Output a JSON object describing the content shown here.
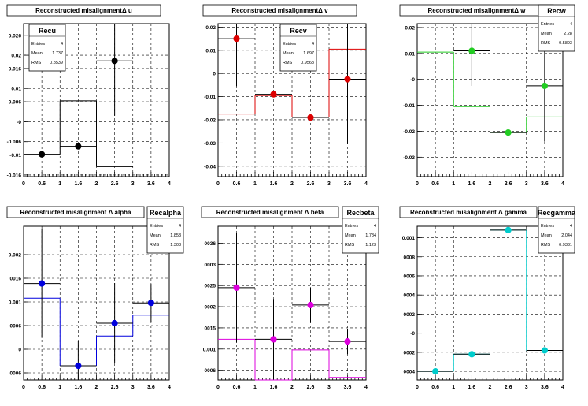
{
  "charts": [
    {
      "title": "Reconstructed misalignmentΔ u",
      "color": "#000000",
      "stats": {
        "name": "Recu",
        "entries": "4",
        "mean": "1.737",
        "rms": "0.8539"
      },
      "entries_label": "Entries",
      "mean_label": "Mean",
      "rms_label": "RMS",
      "xlim": [
        0,
        4
      ],
      "ylim": [
        -0.0165,
        0.0295
      ],
      "xticks": [
        "0",
        "0.6",
        "1",
        "1.6",
        "2",
        "2.6",
        "3",
        "3.6",
        "4"
      ],
      "yticks": [
        "0.026",
        "0.02",
        "0.016",
        "0.01",
        "0.006",
        "-0",
        "-0.006",
        "-0.01",
        "-0.016"
      ],
      "ytick_values": [
        0.026,
        0.02,
        0.016,
        0.01,
        0.006,
        0,
        -0.006,
        -0.01,
        -0.016
      ],
      "ytick_side_clip": true
    },
    {
      "title": "Reconstructed misalignmentΔ v",
      "color": "#dd0000",
      "stats": {
        "name": "Recv",
        "entries": "4",
        "mean": "1.697",
        "rms": "0.9568"
      },
      "entries_label": "Entries",
      "mean_label": "Mean",
      "rms_label": "RMS",
      "xlim": [
        0,
        4
      ],
      "ylim": [
        -0.0445,
        0.0215
      ],
      "xticks": [
        "0",
        "0.6",
        "1",
        "1.6",
        "2",
        "2.6",
        "3",
        "3.6",
        "4"
      ],
      "yticks": [
        "0.02",
        "0.01",
        "0",
        "-0.01",
        "-0.02",
        "-0.03",
        "-0.04"
      ],
      "ytick_values": [
        0.02,
        0.01,
        0,
        -0.01,
        -0.02,
        -0.03,
        -0.04
      ]
    },
    {
      "title": "Reconstructed misalignmentΔ w",
      "color": "#22cc22",
      "stats": {
        "name": "Recw",
        "entries": "4",
        "mean": "2.28",
        "rms": "0.5893"
      },
      "entries_label": "Entries",
      "mean_label": "Mean",
      "rms_label": "RMS",
      "xlim": [
        0,
        4
      ],
      "ylim": [
        -0.0375,
        0.0215
      ],
      "xticks": [
        "0",
        "0.6",
        "1",
        "1.6",
        "2",
        "2.6",
        "3",
        "3.6",
        "4"
      ],
      "yticks": [
        "0.02",
        "0.01",
        "-0",
        "-0.01",
        "-0.02",
        "-0.03"
      ],
      "ytick_values": [
        0.02,
        0.01,
        0,
        -0.01,
        -0.02,
        -0.03
      ]
    },
    {
      "title": "Reconstructed misalignment      Δ alpha",
      "color": "#0000dd",
      "stats": {
        "name": "Recalpha",
        "entries": "4",
        "mean": "1.853",
        "rms": "1.308"
      },
      "entries_label": "Entries",
      "mean_label": "Mean",
      "rms_label": "RMS",
      "xlim": [
        0,
        4
      ],
      "ylim": [
        -0.00065,
        0.0026
      ],
      "xticks": [
        "0",
        "0.6",
        "1",
        "1.6",
        "2",
        "2.6",
        "3",
        "3.6",
        "4"
      ],
      "yticks": [
        "0.002",
        "0.0015",
        "0.001",
        "0.0005",
        "0",
        "-0.0005"
      ],
      "ytick_labels": [
        "0.002",
        "0016",
        "0.001",
        "0006",
        "0",
        "0006"
      ],
      "ytick_values": [
        0.002,
        0.0015,
        0.001,
        0.0005,
        0,
        -0.0005
      ]
    },
    {
      "title": "Reconstructed misalignment      Δ beta",
      "color": "#dd00dd",
      "stats": {
        "name": "Recbeta",
        "entries": "4",
        "mean": "1.784",
        "rms": "1.123"
      },
      "entries_label": "Entries",
      "mean_label": "Mean",
      "rms_label": "RMS",
      "xlim": [
        0,
        4
      ],
      "ylim": [
        0.00027,
        0.0039
      ],
      "xticks": [
        "0",
        "0.6",
        "1",
        "1.6",
        "2",
        "2.6",
        "3",
        "3.6",
        "4"
      ],
      "yticks": [
        "0.0035",
        "0.003",
        "0.0025",
        "0.002",
        "0.0015",
        "0.001",
        "0.0005"
      ],
      "ytick_labels": [
        "0036",
        "0003",
        "0025",
        "0002",
        "0015",
        "0.001",
        "0006"
      ],
      "ytick_values": [
        0.0035,
        0.003,
        0.0025,
        0.002,
        0.0015,
        0.001,
        0.0005
      ]
    },
    {
      "title": "Reconstructed misalignment      Δ gamma",
      "color": "#00cccc",
      "stats": {
        "name": "Recgamma",
        "entries": "4",
        "mean": "2.044",
        "rms": "0.9331"
      },
      "entries_label": "Entries",
      "mean_label": "Mean",
      "rms_label": "RMS",
      "xlim": [
        0,
        4
      ],
      "ylim": [
        -0.00049,
        0.00112
      ],
      "xticks": [
        "0",
        "0.6",
        "1",
        "1.6",
        "2",
        "2.6",
        "3",
        "3.6",
        "4"
      ],
      "yticks": [
        "0.001",
        "0.0008",
        "0.0006",
        "0.0004",
        "0.0002",
        "-0",
        "-0.0002",
        "-0.0004"
      ],
      "ytick_labels": [
        "0.001",
        "0008",
        "0006",
        "0004",
        "0002",
        "-0",
        "0002",
        "0004"
      ],
      "ytick_values": [
        0.001,
        0.0008,
        0.0006,
        0.0004,
        0.0002,
        0,
        -0.0002,
        -0.0004
      ]
    }
  ],
  "chart_data": [
    {
      "type": "bar",
      "name": "Recu",
      "x": [
        0.5,
        1.5,
        2.5,
        3.5
      ],
      "hist": [
        {
          "lo": 0,
          "hi": 1,
          "val": -0.0098
        },
        {
          "lo": 1,
          "hi": 2,
          "val": 0.0063
        },
        {
          "lo": 2,
          "hi": 3,
          "val": -0.0135
        },
        {
          "lo": 3,
          "hi": 4,
          "val": null
        }
      ],
      "points": [
        {
          "x": 0.5,
          "y": -0.0098,
          "ey": 0.0002
        },
        {
          "x": 1.5,
          "y": -0.0074,
          "ey": 0.0002
        },
        {
          "x": 2.5,
          "y": 0.0183,
          "ey": 0.0165
        }
      ],
      "xlim": [
        0,
        4
      ],
      "ylim": [
        -0.0165,
        0.0295
      ]
    },
    {
      "type": "bar",
      "name": "Recv",
      "x": [
        0.5,
        1.5,
        2.5,
        3.5
      ],
      "hist": [
        {
          "lo": 0,
          "hi": 1,
          "val": -0.0175
        },
        {
          "lo": 1,
          "hi": 2,
          "val": -0.0095
        },
        {
          "lo": 2,
          "hi": 3,
          "val": -0.019
        },
        {
          "lo": 3,
          "hi": 4,
          "val": 0.0105
        }
      ],
      "points": [
        {
          "x": 0.5,
          "y": 0.015,
          "ey": 0.0205
        },
        {
          "x": 1.5,
          "y": -0.009,
          "ey": 0.0
        },
        {
          "x": 2.5,
          "y": -0.019,
          "ey": 0.0
        },
        {
          "x": 3.5,
          "y": -0.0025,
          "ey": 0.028
        }
      ],
      "xlim": [
        0,
        4
      ],
      "ylim": [
        -0.0445,
        0.0215
      ]
    },
    {
      "type": "bar",
      "name": "Recw",
      "x": [
        0.5,
        1.5,
        2.5,
        3.5
      ],
      "hist": [
        {
          "lo": 0,
          "hi": 1,
          "val": 0.0105
        },
        {
          "lo": 1,
          "hi": 2,
          "val": -0.0105
        },
        {
          "lo": 2,
          "hi": 3,
          "val": -0.0205
        },
        {
          "lo": 3,
          "hi": 4,
          "val": -0.0145
        }
      ],
      "points": [
        {
          "x": 1.5,
          "y": 0.011,
          "ey": 0.0135
        },
        {
          "x": 2.5,
          "y": -0.0205,
          "ey": 0.0
        },
        {
          "x": 3.5,
          "y": -0.0025,
          "ey": 0.0215
        }
      ],
      "xlim": [
        0,
        4
      ],
      "ylim": [
        -0.0375,
        0.0215
      ]
    },
    {
      "type": "bar",
      "name": "Recalpha",
      "x": [
        0.5,
        1.5,
        2.5,
        3.5
      ],
      "hist": [
        {
          "lo": 0,
          "hi": 1,
          "val": 0.00108
        },
        {
          "lo": 1,
          "hi": 2,
          "val": -0.00035
        },
        {
          "lo": 2,
          "hi": 3,
          "val": 0.00028
        },
        {
          "lo": 3,
          "hi": 4,
          "val": 0.00072
        }
      ],
      "points": [
        {
          "x": 0.5,
          "y": 0.00139,
          "ey": 0.00115
        },
        {
          "x": 1.5,
          "y": -0.00035,
          "ey": 0.00052
        },
        {
          "x": 2.5,
          "y": 0.00055,
          "ey": 0.00085
        },
        {
          "x": 3.5,
          "y": 0.00098,
          "ey": 0.0004
        }
      ],
      "xlim": [
        0,
        4
      ],
      "ylim": [
        -0.00065,
        0.0026
      ]
    },
    {
      "type": "bar",
      "name": "Recbeta",
      "x": [
        0.5,
        1.5,
        2.5,
        3.5
      ],
      "hist": [
        {
          "lo": 0,
          "hi": 1,
          "val": 0.00123
        },
        {
          "lo": 1,
          "hi": 2,
          "val": 0.00026
        },
        {
          "lo": 2,
          "hi": 3,
          "val": 0.00098
        },
        {
          "lo": 3,
          "hi": 4,
          "val": 0.00033
        }
      ],
      "points": [
        {
          "x": 0.5,
          "y": 0.00245,
          "ey": 0.0013
        },
        {
          "x": 1.5,
          "y": 0.00123,
          "ey": 0.00095
        },
        {
          "x": 2.5,
          "y": 0.00204,
          "ey": 0.00042
        },
        {
          "x": 3.5,
          "y": 0.00118,
          "ey": 0.0003
        }
      ],
      "xlim": [
        0,
        4
      ],
      "ylim": [
        0.00027,
        0.0039
      ]
    },
    {
      "type": "bar",
      "name": "Recgamma",
      "x": [
        0.5,
        1.5,
        2.5,
        3.5
      ],
      "hist": [
        {
          "lo": 0,
          "hi": 1,
          "val": -0.0004
        },
        {
          "lo": 1,
          "hi": 2,
          "val": -0.00022
        },
        {
          "lo": 2,
          "hi": 3,
          "val": 0.00108
        },
        {
          "lo": 3,
          "hi": 4,
          "val": -0.00018
        }
      ],
      "points": [
        {
          "x": 0.5,
          "y": -0.0004,
          "ey": 0.0
        },
        {
          "x": 1.5,
          "y": -0.00022,
          "ey": 0.0
        },
        {
          "x": 2.5,
          "y": 0.00108,
          "ey": 0.0
        },
        {
          "x": 3.5,
          "y": -0.00018,
          "ey": 0.0
        }
      ],
      "xlim": [
        0,
        4
      ],
      "ylim": [
        -0.00049,
        0.00112
      ]
    }
  ]
}
